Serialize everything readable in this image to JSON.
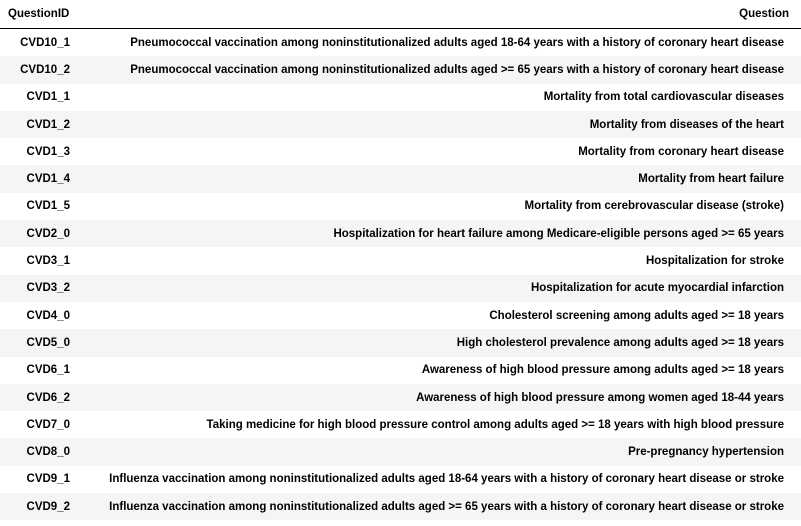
{
  "table": {
    "columns": {
      "id": "QuestionID",
      "question": "Question"
    },
    "rows": [
      {
        "id": "CVD10_1",
        "question": "Pneumococcal vaccination among noninstitutionalized adults aged 18-64 years with a history of coronary heart disease"
      },
      {
        "id": "CVD10_2",
        "question": "Pneumococcal vaccination among noninstitutionalized adults aged >= 65 years with a history of coronary heart disease"
      },
      {
        "id": "CVD1_1",
        "question": "Mortality from total cardiovascular diseases"
      },
      {
        "id": "CVD1_2",
        "question": "Mortality from diseases of the heart"
      },
      {
        "id": "CVD1_3",
        "question": "Mortality from coronary heart disease"
      },
      {
        "id": "CVD1_4",
        "question": "Mortality from heart failure"
      },
      {
        "id": "CVD1_5",
        "question": "Mortality from cerebrovascular disease (stroke)"
      },
      {
        "id": "CVD2_0",
        "question": "Hospitalization for heart failure among Medicare-eligible persons aged >= 65 years"
      },
      {
        "id": "CVD3_1",
        "question": "Hospitalization for stroke"
      },
      {
        "id": "CVD3_2",
        "question": "Hospitalization for acute myocardial infarction"
      },
      {
        "id": "CVD4_0",
        "question": "Cholesterol screening among adults aged >= 18 years"
      },
      {
        "id": "CVD5_0",
        "question": "High cholesterol prevalence among adults aged >= 18 years"
      },
      {
        "id": "CVD6_1",
        "question": "Awareness of high blood pressure among adults aged >= 18 years"
      },
      {
        "id": "CVD6_2",
        "question": "Awareness of high blood pressure among women aged 18-44 years"
      },
      {
        "id": "CVD7_0",
        "question": "Taking medicine for high blood pressure control among adults aged >= 18 years with high blood pressure"
      },
      {
        "id": "CVD8_0",
        "question": "Pre-pregnancy hypertension"
      },
      {
        "id": "CVD9_1",
        "question": "Influenza vaccination among noninstitutionalized adults aged 18-64 years with a history of coronary heart disease or stroke"
      },
      {
        "id": "CVD9_2",
        "question": "Influenza vaccination among noninstitutionalized adults aged >= 65 years with a history of coronary heart disease or stroke"
      }
    ]
  }
}
